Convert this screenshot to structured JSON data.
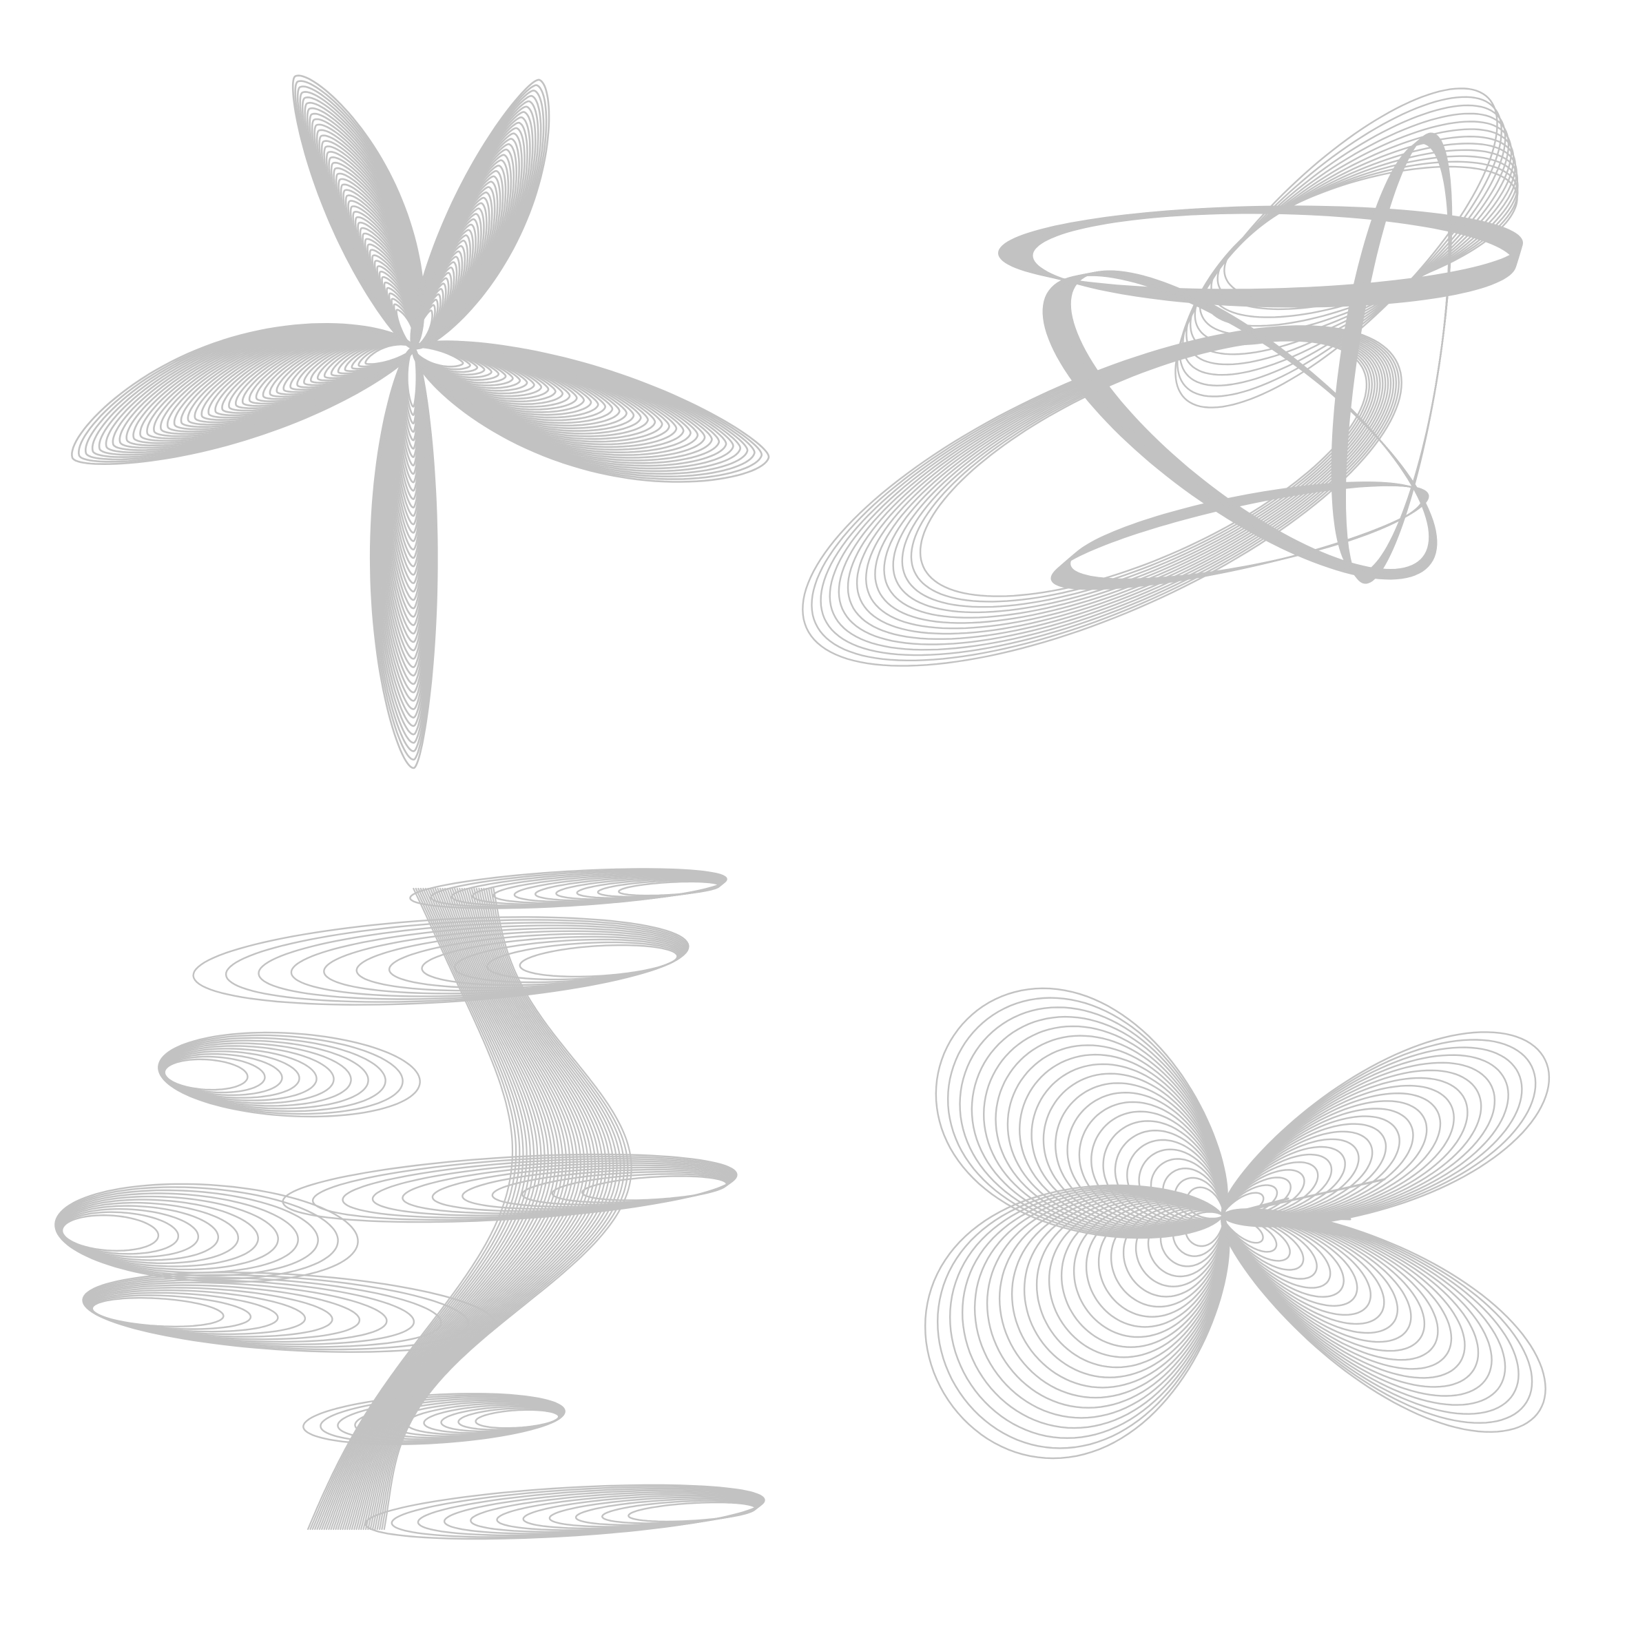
{
  "figure": {
    "stroke_color": "#c2c2c2",
    "background": "#ffffff",
    "panels": [
      {
        "id": "starfish",
        "shape": "five-petal-rosette",
        "loops": 44
      },
      {
        "id": "knot",
        "shape": "tilted-interlocking-rings",
        "loops": 60
      },
      {
        "id": "wave",
        "shape": "zigzag-spiral-stack",
        "loops": 34
      },
      {
        "id": "butterfly",
        "shape": "crossed-hyperbolic-loops",
        "loops": 22
      }
    ]
  }
}
